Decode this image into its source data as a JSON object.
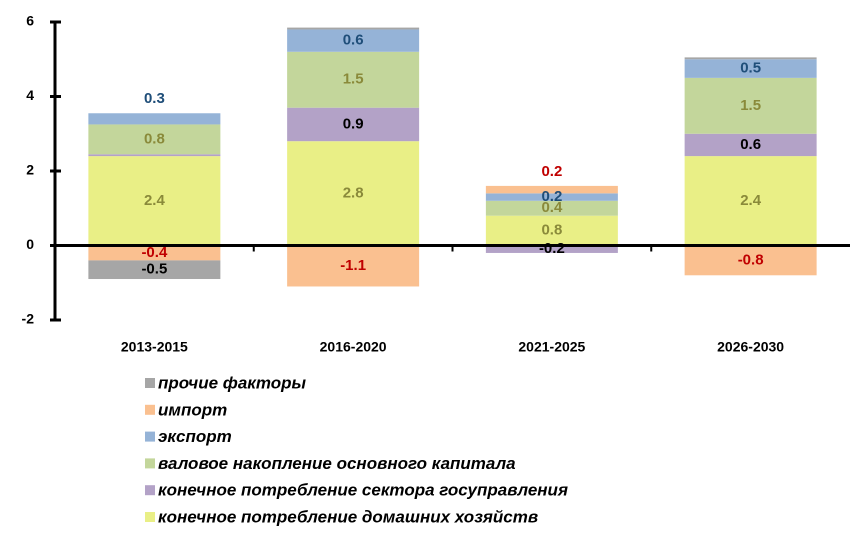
{
  "chart_data": {
    "type": "stacked-bar",
    "categories": [
      "2013-2015",
      "2016-2020",
      "2021-2025",
      "2026-2030"
    ],
    "series": [
      {
        "name": "прочие факторы",
        "color": "#a6a6a6",
        "label_color": "#000000",
        "values": [
          -0.5,
          0.05,
          0,
          0.05
        ],
        "value_labels": [
          "-0.5",
          null,
          null,
          null
        ]
      },
      {
        "name": "импорт",
        "color": "#fac090",
        "label_color": "#c00000",
        "values": [
          -0.4,
          -1.1,
          0.2,
          -0.8
        ],
        "value_labels": [
          "-0.4",
          "-1.1",
          "0.2",
          "-0.8"
        ]
      },
      {
        "name": "экспорт",
        "color": "#95b3d7",
        "label_color": "#1f4e79",
        "values": [
          0.3,
          0.6,
          0.2,
          0.5
        ],
        "value_labels": [
          "0.3",
          "0.6",
          "0.2",
          "0.5"
        ]
      },
      {
        "name": "валовое накопление основного капитала",
        "color": "#c3d69b",
        "label_color": "#8a8a3a",
        "values": [
          0.8,
          1.5,
          0.4,
          1.5
        ],
        "value_labels": [
          "0.8",
          "1.5",
          "0.4",
          "1.5"
        ]
      },
      {
        "name": "конечное потребление сектора госуправления",
        "color": "#b3a2c7",
        "label_color": "#000000",
        "values": [
          0.05,
          0.9,
          -0.2,
          0.6
        ],
        "value_labels": [
          null,
          "0.9",
          "-0.2",
          "0.6"
        ]
      },
      {
        "name": "конечное потребление домашних хозяйств",
        "color": "#e9ef86",
        "label_color": "#8a8a3a",
        "values": [
          2.4,
          2.8,
          0.8,
          2.4
        ],
        "value_labels": [
          "2.4",
          "2.8",
          "0.8",
          "2.4"
        ]
      }
    ],
    "ylim": [
      -2,
      6
    ],
    "yticks": [
      -2,
      0,
      2,
      4,
      6
    ],
    "grid": false,
    "legend": "bottom"
  }
}
